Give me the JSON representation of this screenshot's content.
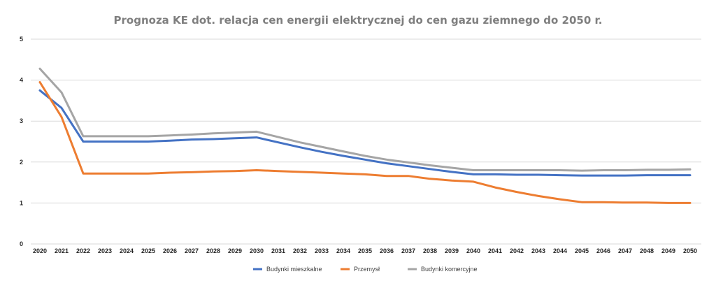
{
  "chart_data": {
    "type": "line",
    "title": "Prognoza KE dot. relacja cen energii elektrycznej do cen gazu ziemnego do 2050 r.",
    "xlabel": "",
    "ylabel": "",
    "ylim": [
      0,
      5
    ],
    "yticks": [
      0,
      1,
      2,
      3,
      4,
      5
    ],
    "grid": true,
    "legend_position": "bottom",
    "categories": [
      "2020",
      "2021",
      "2022",
      "2023",
      "2024",
      "2025",
      "2026",
      "2027",
      "2028",
      "2029",
      "2030",
      "2031",
      "2032",
      "2033",
      "2034",
      "2035",
      "2036",
      "2037",
      "2038",
      "2039",
      "2040",
      "2041",
      "2042",
      "2043",
      "2044",
      "2045",
      "2046",
      "2047",
      "2048",
      "2049",
      "2050"
    ],
    "series": [
      {
        "name": "Budynki mieszkalne",
        "color": "#4472c4",
        "values": [
          3.75,
          3.32,
          2.5,
          2.5,
          2.5,
          2.5,
          2.52,
          2.55,
          2.56,
          2.58,
          2.6,
          2.48,
          2.36,
          2.25,
          2.15,
          2.06,
          1.97,
          1.9,
          1.83,
          1.76,
          1.7,
          1.7,
          1.69,
          1.69,
          1.68,
          1.67,
          1.67,
          1.67,
          1.68,
          1.68,
          1.68
        ]
      },
      {
        "name": "Przemysł",
        "color": "#ed7d31",
        "values": [
          3.95,
          3.1,
          1.72,
          1.72,
          1.72,
          1.72,
          1.74,
          1.75,
          1.77,
          1.78,
          1.8,
          1.78,
          1.76,
          1.74,
          1.72,
          1.7,
          1.66,
          1.66,
          1.59,
          1.55,
          1.52,
          1.38,
          1.27,
          1.17,
          1.09,
          1.02,
          1.02,
          1.01,
          1.01,
          1.0,
          1.0
        ]
      },
      {
        "name": "Budynki komercyjne",
        "color": "#a5a5a5",
        "values": [
          4.28,
          3.7,
          2.63,
          2.63,
          2.63,
          2.63,
          2.65,
          2.67,
          2.7,
          2.72,
          2.74,
          2.61,
          2.48,
          2.37,
          2.26,
          2.15,
          2.06,
          1.99,
          1.92,
          1.86,
          1.8,
          1.8,
          1.8,
          1.8,
          1.8,
          1.79,
          1.8,
          1.8,
          1.81,
          1.81,
          1.82
        ]
      }
    ]
  }
}
